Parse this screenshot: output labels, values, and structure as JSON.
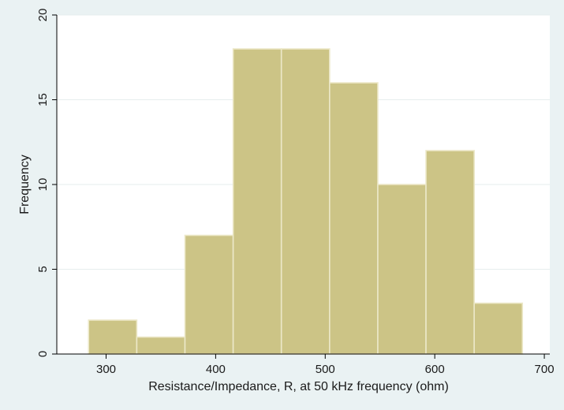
{
  "chart_data": {
    "type": "bar",
    "subtype": "histogram",
    "xlabel": "Resistance/Impedance, R, at 50 kHz frequency (ohm)",
    "ylabel": "Frequency",
    "xlim": [
      255,
      705
    ],
    "ylim": [
      0,
      20
    ],
    "x_ticks": [
      300,
      400,
      500,
      600,
      700
    ],
    "y_ticks": [
      0,
      5,
      10,
      15,
      20
    ],
    "bins": [
      {
        "start": 284,
        "end": 328,
        "count": 2
      },
      {
        "start": 328,
        "end": 372,
        "count": 1
      },
      {
        "start": 372,
        "end": 416,
        "count": 7
      },
      {
        "start": 416,
        "end": 460,
        "count": 18
      },
      {
        "start": 460,
        "end": 504,
        "count": 18
      },
      {
        "start": 504,
        "end": 548,
        "count": 16
      },
      {
        "start": 548,
        "end": 592,
        "count": 10
      },
      {
        "start": 592,
        "end": 636,
        "count": 12
      },
      {
        "start": 636,
        "end": 680,
        "count": 3
      }
    ],
    "grid": true,
    "legend": "none",
    "colors": {
      "bar_fill": "#ccc486",
      "bar_stroke": "#ece8c8",
      "plot_background": "#ffffff",
      "outer_background": "#eaf2f3",
      "grid": "#e6edee",
      "axis": "#000000"
    }
  }
}
